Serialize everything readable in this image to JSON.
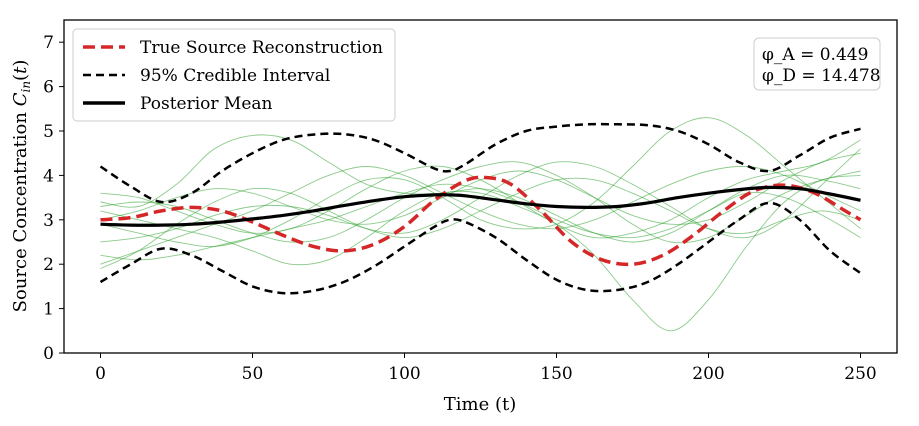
{
  "chart_data": {
    "type": "line",
    "xlabel": "Time (t)",
    "ylabel": "Source Concentration C_in(t)",
    "xlim": [
      -12,
      262
    ],
    "ylim": [
      0,
      7.5
    ],
    "xticks": [
      0,
      50,
      100,
      150,
      200,
      250
    ],
    "yticks": [
      0,
      1,
      2,
      3,
      4,
      5,
      6,
      7
    ],
    "grid": false,
    "legend": {
      "position": "top-left",
      "entries": [
        "True Source Reconstruction",
        "95% Credible Interval",
        "Posterior Mean"
      ]
    },
    "annotation": {
      "position": "top-right",
      "lines": [
        "φ_A = 0.449",
        "φ_D = 14.478"
      ]
    },
    "colors": {
      "true_source": "#d62728",
      "credible_interval": "#000000",
      "posterior_mean": "#000000",
      "samples": "#2ca02c"
    },
    "series": [
      {
        "name": "True Source Reconstruction",
        "style": "dashed",
        "x": [
          0,
          10,
          20,
          30,
          40,
          50,
          60,
          70,
          80,
          90,
          100,
          110,
          120,
          127,
          135,
          145,
          155,
          165,
          175,
          185,
          195,
          205,
          215,
          225,
          235,
          245,
          250
        ],
        "y": [
          3.0,
          3.05,
          3.2,
          3.28,
          3.2,
          2.95,
          2.65,
          2.4,
          2.3,
          2.45,
          2.85,
          3.45,
          3.88,
          3.95,
          3.8,
          3.2,
          2.5,
          2.1,
          2.0,
          2.2,
          2.65,
          3.2,
          3.65,
          3.78,
          3.6,
          3.2,
          3.0
        ]
      },
      {
        "name": "95% Credible Interval",
        "style": "dashed",
        "x": [
          0,
          10,
          20,
          30,
          40,
          50,
          60,
          70,
          80,
          90,
          100,
          110,
          115,
          120,
          130,
          140,
          150,
          160,
          170,
          180,
          190,
          200,
          210,
          220,
          230,
          240,
          250
        ],
        "y": [
          4.2,
          3.75,
          3.4,
          3.6,
          4.1,
          4.5,
          4.8,
          4.92,
          4.93,
          4.8,
          4.5,
          4.15,
          4.1,
          4.25,
          4.7,
          5.0,
          5.1,
          5.15,
          5.15,
          5.13,
          5.0,
          4.7,
          4.3,
          4.1,
          4.45,
          4.85,
          5.05
        ]
      },
      {
        "name": "95% Credible Interval (lower)",
        "style": "dashed",
        "x": [
          0,
          10,
          20,
          30,
          40,
          50,
          60,
          70,
          80,
          90,
          100,
          110,
          115,
          120,
          130,
          140,
          150,
          160,
          170,
          180,
          190,
          200,
          210,
          220,
          230,
          240,
          250
        ],
        "y": [
          1.6,
          2.0,
          2.35,
          2.2,
          1.85,
          1.5,
          1.35,
          1.4,
          1.6,
          1.95,
          2.4,
          2.85,
          3.0,
          2.95,
          2.6,
          2.1,
          1.65,
          1.42,
          1.42,
          1.6,
          2.0,
          2.5,
          3.0,
          3.38,
          3.0,
          2.3,
          1.8
        ]
      },
      {
        "name": "Posterior Mean",
        "style": "solid",
        "x": [
          0,
          10,
          20,
          30,
          40,
          50,
          60,
          70,
          80,
          90,
          100,
          110,
          115,
          120,
          130,
          140,
          150,
          160,
          170,
          180,
          190,
          200,
          210,
          220,
          230,
          240,
          250
        ],
        "y": [
          2.9,
          2.88,
          2.88,
          2.9,
          2.95,
          3.02,
          3.1,
          3.2,
          3.32,
          3.43,
          3.52,
          3.56,
          3.56,
          3.54,
          3.45,
          3.36,
          3.3,
          3.28,
          3.3,
          3.38,
          3.5,
          3.6,
          3.68,
          3.73,
          3.7,
          3.58,
          3.44
        ]
      }
    ],
    "samples": {
      "x": [
        0,
        12.5,
        25,
        37.5,
        50,
        62.5,
        75,
        87.5,
        100,
        112.5,
        125,
        137.5,
        150,
        162.5,
        175,
        187.5,
        200,
        212.5,
        225,
        237.5,
        250
      ],
      "y": [
        [
          3.4,
          3.3,
          3.8,
          4.6,
          4.9,
          4.8,
          4.3,
          3.8,
          3.6,
          3.6,
          3.7,
          3.5,
          3.1,
          2.7,
          2.5,
          2.7,
          3.2,
          3.7,
          4.0,
          3.9,
          3.7
        ],
        [
          2.0,
          2.3,
          2.6,
          2.9,
          3.2,
          3.6,
          4.0,
          4.2,
          4.0,
          3.6,
          3.2,
          2.9,
          2.8,
          3.0,
          3.4,
          3.8,
          4.1,
          4.2,
          4.0,
          3.6,
          3.2
        ],
        [
          3.2,
          3.0,
          2.8,
          2.6,
          2.3,
          2.0,
          2.1,
          2.6,
          3.2,
          3.6,
          3.6,
          3.3,
          2.9,
          2.2,
          1.2,
          0.5,
          1.2,
          2.4,
          3.4,
          3.9,
          4.0
        ],
        [
          2.9,
          2.7,
          2.5,
          2.4,
          2.6,
          3.0,
          3.5,
          3.9,
          3.9,
          3.5,
          3.0,
          2.8,
          2.9,
          3.4,
          4.2,
          5.0,
          5.3,
          4.9,
          4.2,
          3.5,
          2.8
        ],
        [
          2.5,
          2.6,
          2.8,
          3.1,
          3.3,
          3.3,
          3.1,
          2.8,
          2.7,
          3.0,
          3.5,
          4.0,
          4.3,
          4.2,
          3.8,
          3.3,
          2.8,
          2.6,
          3.0,
          3.8,
          4.6
        ],
        [
          3.6,
          3.5,
          3.2,
          2.9,
          2.7,
          2.8,
          3.2,
          3.7,
          4.1,
          4.2,
          3.9,
          3.4,
          2.9,
          2.6,
          2.7,
          3.0,
          3.5,
          3.9,
          4.1,
          4.3,
          4.8
        ],
        [
          2.2,
          2.1,
          2.2,
          2.4,
          2.6,
          2.8,
          3.0,
          3.3,
          3.6,
          3.8,
          3.7,
          3.4,
          3.0,
          2.7,
          2.6,
          2.8,
          3.2,
          3.6,
          3.5,
          3.1,
          2.6
        ],
        [
          3.0,
          3.2,
          3.5,
          3.7,
          3.6,
          3.3,
          3.0,
          2.9,
          3.1,
          3.5,
          3.9,
          4.1,
          3.9,
          3.5,
          3.1,
          2.9,
          3.0,
          3.4,
          3.9,
          4.3,
          4.5
        ],
        [
          1.9,
          2.3,
          2.9,
          3.4,
          3.7,
          3.6,
          3.2,
          2.8,
          2.6,
          2.8,
          3.2,
          3.6,
          3.9,
          3.9,
          3.6,
          3.2,
          2.8,
          2.7,
          3.0,
          3.2,
          3.0
        ],
        [
          3.3,
          3.4,
          3.3,
          3.0,
          2.7,
          2.5,
          2.6,
          3.0,
          3.5,
          3.9,
          4.2,
          4.3,
          4.0,
          3.5,
          2.9,
          2.5,
          2.6,
          3.1,
          3.6,
          3.9,
          4.1
        ]
      ]
    }
  }
}
